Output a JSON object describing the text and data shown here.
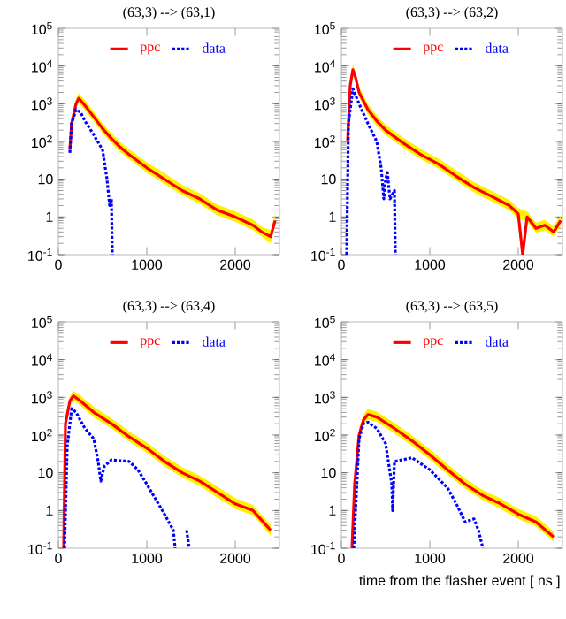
{
  "chart_data": [
    {
      "type": "line",
      "title": "(63,3) --> (63,1)",
      "log": "y",
      "legend": "top",
      "xlim": [
        0,
        2500
      ],
      "ylim": [
        0.1,
        100000
      ],
      "xticks": [
        0,
        1000,
        2000
      ],
      "yticks": [
        {
          "value": 0.1,
          "label": "10$^{-1}$"
        },
        1,
        10,
        {
          "value": 100,
          "label": "10$^{2}$"
        },
        {
          "value": 1000,
          "label": "10$^{3}$"
        },
        {
          "value": 10000,
          "label": "10$^{4}$"
        },
        {
          "value": 100000,
          "label": "10$^{5}$"
        }
      ],
      "series": [
        {
          "name": "ppc",
          "color": "#ff0000",
          "line_style": "solid",
          "x": [
            130,
            150,
            200,
            230,
            300,
            400,
            500,
            600,
            700,
            800,
            1000,
            1200,
            1400,
            1600,
            1800,
            2000,
            2200,
            2300,
            2400,
            2450
          ],
          "values": [
            60,
            300,
            1000,
            1400,
            900,
            450,
            220,
            120,
            70,
            45,
            20,
            10,
            5,
            3,
            1.5,
            1,
            0.6,
            0.4,
            0.3,
            0.8
          ],
          "upper": [
            80,
            400,
            1400,
            1900,
            1250,
            620,
            300,
            165,
            95,
            62,
            28,
            14.6,
            7,
            4.2,
            2.1,
            1.4,
            0.85,
            0.55,
            0.45,
            1.1
          ],
          "lower": [
            45,
            230,
            750,
            1050,
            680,
            340,
            165,
            90,
            52,
            34,
            15,
            7.5,
            3.8,
            2.2,
            1.1,
            0.75,
            0.45,
            0.301,
            0.2,
            0.6
          ]
        },
        {
          "name": "data",
          "color": "#0000ff",
          "line_style": "dotted",
          "x": [
            130,
            150,
            200,
            250,
            300,
            400,
            500,
            550,
            580,
            600,
            610
          ],
          "values": [
            50,
            300,
            700,
            600,
            350,
            150,
            60,
            10,
            2,
            3,
            0.1
          ]
        }
      ]
    },
    {
      "type": "line",
      "title": "(63,3) --> (63,2)",
      "log": "y",
      "legend": "top",
      "xlim": [
        0,
        2500
      ],
      "ylim": [
        0.1,
        100000
      ],
      "xticks": [
        0,
        1000,
        2000
      ],
      "yticks": [
        {
          "value": 0.1,
          "label": "10$^{-1}$"
        },
        1,
        10,
        {
          "value": 100,
          "label": "10$^{2}$"
        },
        {
          "value": 1000,
          "label": "10$^{3}$"
        },
        {
          "value": 10000,
          "label": "10$^{4}$"
        },
        {
          "value": 100000,
          "label": "10$^{5}$"
        }
      ],
      "series": [
        {
          "name": "ppc",
          "color": "#ff0000",
          "line_style": "solid",
          "x": [
            70,
            100,
            130,
            160,
            200,
            300,
            400,
            500,
            700,
            900,
            1100,
            1300,
            1500,
            1700,
            1900,
            2000,
            2050,
            2100,
            2200,
            2300,
            2400,
            2480
          ],
          "values": [
            100,
            3000,
            8000,
            5000,
            2000,
            700,
            350,
            200,
            90,
            45,
            25,
            12,
            6,
            3.5,
            2,
            1.2,
            0.1,
            1,
            0.5,
            0.6,
            0.4,
            0.8
          ],
          "upper": [
            140,
            4200,
            11000,
            7000,
            2800,
            980,
            490,
            280,
            126,
            63,
            35,
            17,
            8.4,
            4.9,
            2.8,
            1.7,
            null,
            1.4,
            0.7,
            0.84,
            0.56,
            1.1
          ],
          "lower": [
            75,
            2250,
            6000,
            3750,
            1500,
            525,
            260,
            150,
            68,
            34,
            19,
            9,
            4.5,
            2.6,
            1.5,
            0.9,
            null,
            0.75,
            0.38,
            0.45,
            0.3,
            0.6
          ]
        },
        {
          "name": "data",
          "color": "#0000ff",
          "line_style": "dotted",
          "x": [
            60,
            80,
            130,
            200,
            300,
            400,
            450,
            480,
            500,
            520,
            550,
            600,
            610
          ],
          "values": [
            0.1,
            300,
            2500,
            1000,
            300,
            100,
            20,
            3,
            10,
            15,
            3,
            5,
            0.1
          ]
        }
      ]
    },
    {
      "type": "line",
      "title": "(63,3) --> (63,4)",
      "log": "y",
      "legend": "top",
      "xlim": [
        0,
        2500
      ],
      "ylim": [
        0.1,
        100000
      ],
      "xticks": [
        0,
        1000,
        2000
      ],
      "yticks": [
        {
          "value": 0.1,
          "label": "10$^{-1}$"
        },
        1,
        10,
        {
          "value": 100,
          "label": "10$^{2}$"
        },
        {
          "value": 1000,
          "label": "10$^{3}$"
        },
        {
          "value": 10000,
          "label": "10$^{4}$"
        },
        {
          "value": 100000,
          "label": "10$^{5}$"
        }
      ],
      "series": [
        {
          "name": "ppc",
          "color": "#ff0000",
          "line_style": "solid",
          "x": [
            60,
            80,
            130,
            170,
            250,
            400,
            600,
            800,
            1000,
            1200,
            1400,
            1600,
            1800,
            2000,
            2200,
            2400
          ],
          "values": [
            0.1,
            200,
            800,
            1100,
            800,
            400,
            200,
            90,
            45,
            20,
            10,
            6,
            3,
            1.5,
            1,
            0.3
          ],
          "upper": [
            null,
            280,
            1100,
            1500,
            1100,
            560,
            280,
            126,
            63,
            28,
            14,
            8.4,
            4.32,
            2.1,
            1.4,
            0.42
          ],
          "lower": [
            null,
            150,
            600,
            820,
            600,
            300,
            150,
            68,
            34,
            15,
            7.5,
            4.5,
            2.2,
            1.1,
            0.75,
            0.22
          ]
        },
        {
          "name": "data",
          "color": "#0000ff",
          "line_style": "dotted",
          "x": [
            70,
            100,
            150,
            200,
            300,
            400,
            450,
            480,
            520,
            600,
            800,
            900,
            1000,
            1100,
            1200,
            1300,
            1320,
            1400,
            1450,
            1480
          ],
          "values": [
            0.1,
            50,
            500,
            400,
            150,
            80,
            20,
            6,
            15,
            22,
            20,
            12,
            5,
            2,
            0.8,
            0.3,
            0.1,
            null,
            0.3,
            0.1
          ]
        }
      ]
    },
    {
      "type": "line",
      "title": "(63,3) --> (63,5)",
      "xlabel": "time from the flasher event [ ns ]",
      "log": "y",
      "legend": "top",
      "xlim": [
        0,
        2500
      ],
      "ylim": [
        0.1,
        100000
      ],
      "xticks": [
        0,
        1000,
        2000
      ],
      "yticks": [
        {
          "value": 0.1,
          "label": "10$^{-1}$"
        },
        1,
        10,
        {
          "value": 100,
          "label": "10$^{2}$"
        },
        {
          "value": 1000,
          "label": "10$^{3}$"
        },
        {
          "value": 10000,
          "label": "10$^{4}$"
        },
        {
          "value": 100000,
          "label": "10$^{5}$"
        }
      ],
      "series": [
        {
          "name": "ppc",
          "color": "#ff0000",
          "line_style": "solid",
          "x": [
            120,
            150,
            200,
            250,
            300,
            400,
            600,
            800,
            1000,
            1200,
            1400,
            1600,
            1800,
            2000,
            2200,
            2400
          ],
          "values": [
            0.1,
            5,
            100,
            250,
            350,
            300,
            150,
            70,
            30,
            12,
            5,
            2.5,
            1.5,
            0.8,
            0.5,
            0.2
          ],
          "upper": [
            null,
            7,
            140,
            350,
            490,
            420,
            210,
            98,
            42,
            17,
            7,
            3.5,
            2.1,
            1.1,
            0.7,
            0.28
          ],
          "lower": [
            null,
            3.8,
            75,
            190,
            260,
            225,
            110,
            52,
            22,
            9,
            3.8,
            1.9,
            1.1,
            0.6,
            0.38,
            0.15
          ]
        },
        {
          "name": "data",
          "color": "#0000ff",
          "line_style": "dotted",
          "x": [
            140,
            200,
            250,
            300,
            400,
            500,
            570,
            580,
            600,
            800,
            1000,
            1200,
            1300,
            1400,
            1500,
            1550,
            1600
          ],
          "values": [
            0.1,
            80,
            200,
            220,
            150,
            60,
            5,
            1,
            20,
            25,
            12,
            4,
            1.5,
            0.5,
            0.6,
            0.3,
            0.1
          ]
        }
      ]
    }
  ]
}
